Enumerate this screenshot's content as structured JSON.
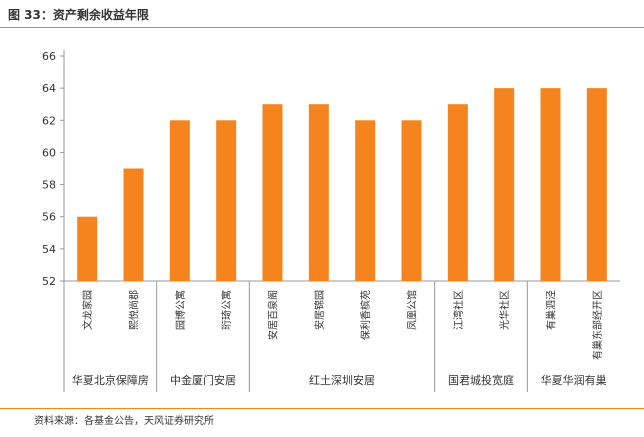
{
  "header": {
    "title": "图 33：资产剩余收益年限"
  },
  "footer": {
    "source": "资料来源：各基金公告，天风证券研究所"
  },
  "colors": {
    "accent": "#f5841f",
    "bar": "#f5841f",
    "axis": "#999999",
    "text": "#333333"
  },
  "chart_data": {
    "type": "bar",
    "title": "",
    "xlabel": "",
    "ylabel": "",
    "ylim": [
      52,
      66
    ],
    "yticks": [
      52,
      54,
      56,
      58,
      60,
      62,
      64,
      66
    ],
    "grid": false,
    "categories": [
      "文龙家园",
      "熙悦尚郡",
      "园博公寓",
      "珩琦公寓",
      "安居百泉阁",
      "安居锦园",
      "保利香槟苑",
      "凤凰公馆",
      "江湾社区",
      "光华社区",
      "有巢泗泾",
      "有巢东部经开区"
    ],
    "values": [
      56,
      59,
      62,
      62,
      63,
      63,
      62,
      62,
      63,
      64,
      64,
      64
    ],
    "groups": [
      {
        "name": "华夏北京保障房",
        "categories": [
          "文龙家园",
          "熙悦尚郡"
        ]
      },
      {
        "name": "中金厦门安居",
        "categories": [
          "园博公寓",
          "珩琦公寓"
        ]
      },
      {
        "name": "红土深圳安居",
        "categories": [
          "安居百泉阁",
          "安居锦园",
          "保利香槟苑",
          "凤凰公馆"
        ]
      },
      {
        "name": "国君城投宽庭",
        "categories": [
          "江湾社区",
          "光华社区"
        ]
      },
      {
        "name": "华夏华润有巢",
        "categories": [
          "有巢泗泾",
          "有巢东部经开区"
        ]
      }
    ]
  }
}
